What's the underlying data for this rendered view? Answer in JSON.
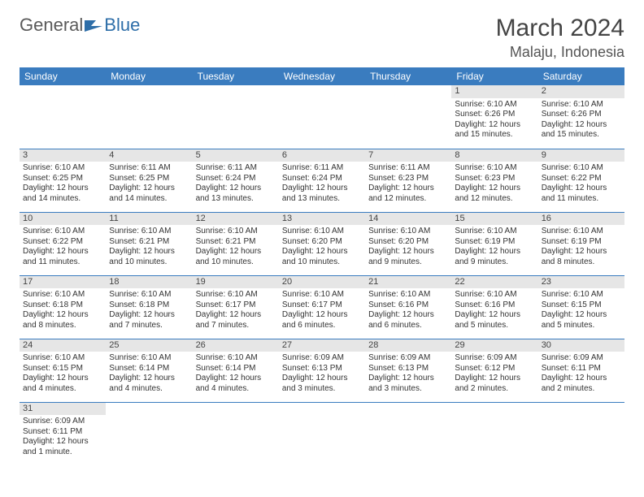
{
  "brand": {
    "text1": "General",
    "text2": "Blue",
    "flag_color": "#2e6ea8",
    "text1_color": "#5a5a5a",
    "text2_color": "#2e6ea8"
  },
  "title": "March 2024",
  "location": "Malaju, Indonesia",
  "colors": {
    "header_bg": "#3a7cbf",
    "header_fg": "#ffffff",
    "daynum_bg": "#e6e6e6",
    "border": "#3a7cbf",
    "background": "#ffffff"
  },
  "weekdays": [
    "Sunday",
    "Monday",
    "Tuesday",
    "Wednesday",
    "Thursday",
    "Friday",
    "Saturday"
  ],
  "weeks": [
    [
      {
        "num": "",
        "sunrise": "",
        "sunset": "",
        "daylight": ""
      },
      {
        "num": "",
        "sunrise": "",
        "sunset": "",
        "daylight": ""
      },
      {
        "num": "",
        "sunrise": "",
        "sunset": "",
        "daylight": ""
      },
      {
        "num": "",
        "sunrise": "",
        "sunset": "",
        "daylight": ""
      },
      {
        "num": "",
        "sunrise": "",
        "sunset": "",
        "daylight": ""
      },
      {
        "num": "1",
        "sunrise": "Sunrise: 6:10 AM",
        "sunset": "Sunset: 6:26 PM",
        "daylight": "Daylight: 12 hours and 15 minutes."
      },
      {
        "num": "2",
        "sunrise": "Sunrise: 6:10 AM",
        "sunset": "Sunset: 6:26 PM",
        "daylight": "Daylight: 12 hours and 15 minutes."
      }
    ],
    [
      {
        "num": "3",
        "sunrise": "Sunrise: 6:10 AM",
        "sunset": "Sunset: 6:25 PM",
        "daylight": "Daylight: 12 hours and 14 minutes."
      },
      {
        "num": "4",
        "sunrise": "Sunrise: 6:11 AM",
        "sunset": "Sunset: 6:25 PM",
        "daylight": "Daylight: 12 hours and 14 minutes."
      },
      {
        "num": "5",
        "sunrise": "Sunrise: 6:11 AM",
        "sunset": "Sunset: 6:24 PM",
        "daylight": "Daylight: 12 hours and 13 minutes."
      },
      {
        "num": "6",
        "sunrise": "Sunrise: 6:11 AM",
        "sunset": "Sunset: 6:24 PM",
        "daylight": "Daylight: 12 hours and 13 minutes."
      },
      {
        "num": "7",
        "sunrise": "Sunrise: 6:11 AM",
        "sunset": "Sunset: 6:23 PM",
        "daylight": "Daylight: 12 hours and 12 minutes."
      },
      {
        "num": "8",
        "sunrise": "Sunrise: 6:10 AM",
        "sunset": "Sunset: 6:23 PM",
        "daylight": "Daylight: 12 hours and 12 minutes."
      },
      {
        "num": "9",
        "sunrise": "Sunrise: 6:10 AM",
        "sunset": "Sunset: 6:22 PM",
        "daylight": "Daylight: 12 hours and 11 minutes."
      }
    ],
    [
      {
        "num": "10",
        "sunrise": "Sunrise: 6:10 AM",
        "sunset": "Sunset: 6:22 PM",
        "daylight": "Daylight: 12 hours and 11 minutes."
      },
      {
        "num": "11",
        "sunrise": "Sunrise: 6:10 AM",
        "sunset": "Sunset: 6:21 PM",
        "daylight": "Daylight: 12 hours and 10 minutes."
      },
      {
        "num": "12",
        "sunrise": "Sunrise: 6:10 AM",
        "sunset": "Sunset: 6:21 PM",
        "daylight": "Daylight: 12 hours and 10 minutes."
      },
      {
        "num": "13",
        "sunrise": "Sunrise: 6:10 AM",
        "sunset": "Sunset: 6:20 PM",
        "daylight": "Daylight: 12 hours and 10 minutes."
      },
      {
        "num": "14",
        "sunrise": "Sunrise: 6:10 AM",
        "sunset": "Sunset: 6:20 PM",
        "daylight": "Daylight: 12 hours and 9 minutes."
      },
      {
        "num": "15",
        "sunrise": "Sunrise: 6:10 AM",
        "sunset": "Sunset: 6:19 PM",
        "daylight": "Daylight: 12 hours and 9 minutes."
      },
      {
        "num": "16",
        "sunrise": "Sunrise: 6:10 AM",
        "sunset": "Sunset: 6:19 PM",
        "daylight": "Daylight: 12 hours and 8 minutes."
      }
    ],
    [
      {
        "num": "17",
        "sunrise": "Sunrise: 6:10 AM",
        "sunset": "Sunset: 6:18 PM",
        "daylight": "Daylight: 12 hours and 8 minutes."
      },
      {
        "num": "18",
        "sunrise": "Sunrise: 6:10 AM",
        "sunset": "Sunset: 6:18 PM",
        "daylight": "Daylight: 12 hours and 7 minutes."
      },
      {
        "num": "19",
        "sunrise": "Sunrise: 6:10 AM",
        "sunset": "Sunset: 6:17 PM",
        "daylight": "Daylight: 12 hours and 7 minutes."
      },
      {
        "num": "20",
        "sunrise": "Sunrise: 6:10 AM",
        "sunset": "Sunset: 6:17 PM",
        "daylight": "Daylight: 12 hours and 6 minutes."
      },
      {
        "num": "21",
        "sunrise": "Sunrise: 6:10 AM",
        "sunset": "Sunset: 6:16 PM",
        "daylight": "Daylight: 12 hours and 6 minutes."
      },
      {
        "num": "22",
        "sunrise": "Sunrise: 6:10 AM",
        "sunset": "Sunset: 6:16 PM",
        "daylight": "Daylight: 12 hours and 5 minutes."
      },
      {
        "num": "23",
        "sunrise": "Sunrise: 6:10 AM",
        "sunset": "Sunset: 6:15 PM",
        "daylight": "Daylight: 12 hours and 5 minutes."
      }
    ],
    [
      {
        "num": "24",
        "sunrise": "Sunrise: 6:10 AM",
        "sunset": "Sunset: 6:15 PM",
        "daylight": "Daylight: 12 hours and 4 minutes."
      },
      {
        "num": "25",
        "sunrise": "Sunrise: 6:10 AM",
        "sunset": "Sunset: 6:14 PM",
        "daylight": "Daylight: 12 hours and 4 minutes."
      },
      {
        "num": "26",
        "sunrise": "Sunrise: 6:10 AM",
        "sunset": "Sunset: 6:14 PM",
        "daylight": "Daylight: 12 hours and 4 minutes."
      },
      {
        "num": "27",
        "sunrise": "Sunrise: 6:09 AM",
        "sunset": "Sunset: 6:13 PM",
        "daylight": "Daylight: 12 hours and 3 minutes."
      },
      {
        "num": "28",
        "sunrise": "Sunrise: 6:09 AM",
        "sunset": "Sunset: 6:13 PM",
        "daylight": "Daylight: 12 hours and 3 minutes."
      },
      {
        "num": "29",
        "sunrise": "Sunrise: 6:09 AM",
        "sunset": "Sunset: 6:12 PM",
        "daylight": "Daylight: 12 hours and 2 minutes."
      },
      {
        "num": "30",
        "sunrise": "Sunrise: 6:09 AM",
        "sunset": "Sunset: 6:11 PM",
        "daylight": "Daylight: 12 hours and 2 minutes."
      }
    ],
    [
      {
        "num": "31",
        "sunrise": "Sunrise: 6:09 AM",
        "sunset": "Sunset: 6:11 PM",
        "daylight": "Daylight: 12 hours and 1 minute."
      },
      {
        "num": "",
        "sunrise": "",
        "sunset": "",
        "daylight": ""
      },
      {
        "num": "",
        "sunrise": "",
        "sunset": "",
        "daylight": ""
      },
      {
        "num": "",
        "sunrise": "",
        "sunset": "",
        "daylight": ""
      },
      {
        "num": "",
        "sunrise": "",
        "sunset": "",
        "daylight": ""
      },
      {
        "num": "",
        "sunrise": "",
        "sunset": "",
        "daylight": ""
      },
      {
        "num": "",
        "sunrise": "",
        "sunset": "",
        "daylight": ""
      }
    ]
  ]
}
